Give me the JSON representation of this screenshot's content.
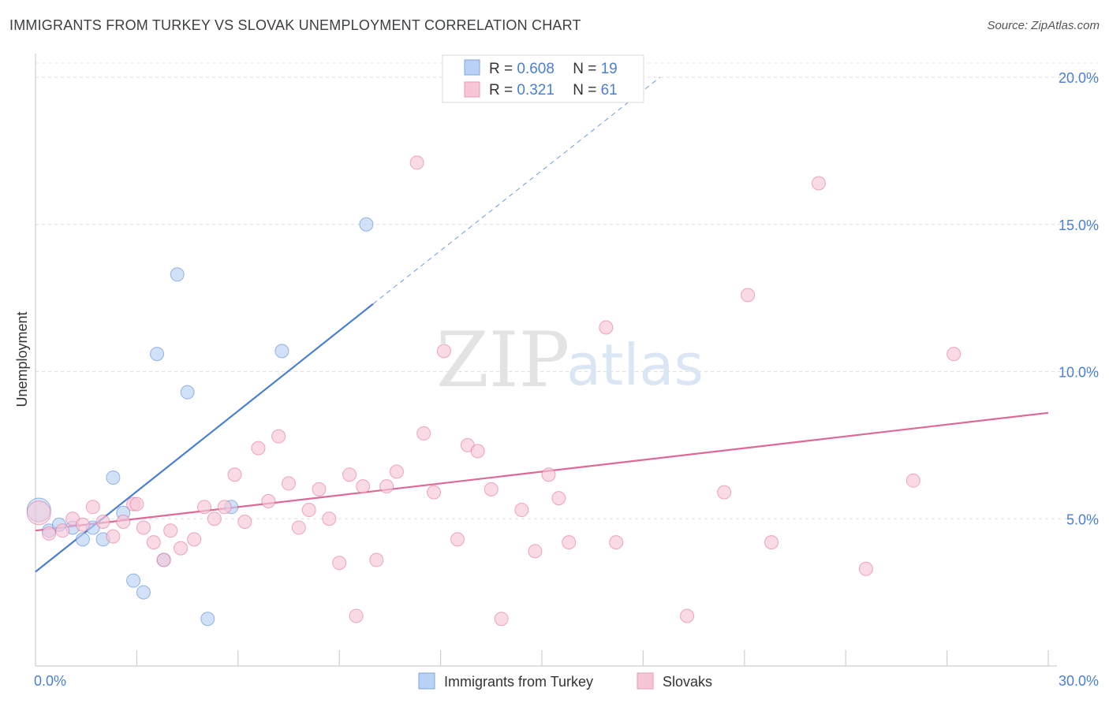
{
  "chart_data": {
    "type": "scatter",
    "title": "IMMIGRANTS FROM TURKEY VS SLOVAK UNEMPLOYMENT CORRELATION CHART",
    "source": "Source: ZipAtlas.com",
    "ylabel": "Unemployment",
    "xlim": [
      0,
      30
    ],
    "ylim": [
      0,
      20
    ],
    "y_ticks": [
      {
        "value": 5,
        "label": "5.0%"
      },
      {
        "value": 10,
        "label": "10.0%"
      },
      {
        "value": 15,
        "label": "15.0%"
      },
      {
        "value": 20,
        "label": "20.0%"
      }
    ],
    "x_ticks": [
      {
        "value": 0,
        "label": "0.0%"
      },
      {
        "value": 30,
        "label": "30.0%"
      }
    ],
    "watermark": {
      "zip": "ZIP",
      "atlas": "atlas"
    },
    "legend": [
      {
        "label": "R = ",
        "r": "0.608",
        "n_label": "N = ",
        "n": "19"
      },
      {
        "label": "R = ",
        "r": " 0.321",
        "n_label": "N = ",
        "n": "61"
      }
    ],
    "series": [
      {
        "name": "Immigrants from Turkey",
        "color": "#4a7fd4",
        "fill": "#b9d1f4",
        "points": [
          [
            0.1,
            5.3
          ],
          [
            0.4,
            4.6
          ],
          [
            0.7,
            4.8
          ],
          [
            1.1,
            4.7
          ],
          [
            1.4,
            4.3
          ],
          [
            1.7,
            4.7
          ],
          [
            2.0,
            4.3
          ],
          [
            2.3,
            6.4
          ],
          [
            2.6,
            5.2
          ],
          [
            2.9,
            2.9
          ],
          [
            3.2,
            2.5
          ],
          [
            3.6,
            10.6
          ],
          [
            3.8,
            3.6
          ],
          [
            4.2,
            13.3
          ],
          [
            4.5,
            9.3
          ],
          [
            5.1,
            1.6
          ],
          [
            5.8,
            5.4
          ],
          [
            7.3,
            10.7
          ],
          [
            9.8,
            15.0
          ]
        ],
        "trend": {
          "x1": 0,
          "y1": 3.2,
          "x2": 10.0,
          "y2": 12.3,
          "dash_to_x": 18.5,
          "dash_to_y": 20.0
        }
      },
      {
        "name": "Slovaks",
        "color": "#e06896",
        "fill": "#f7c6d6",
        "points": [
          [
            0.1,
            5.2
          ],
          [
            0.4,
            4.5
          ],
          [
            0.8,
            4.6
          ],
          [
            1.1,
            5.0
          ],
          [
            1.4,
            4.8
          ],
          [
            1.7,
            5.4
          ],
          [
            2.0,
            4.9
          ],
          [
            2.3,
            4.4
          ],
          [
            2.6,
            4.9
          ],
          [
            2.9,
            5.5
          ],
          [
            3.2,
            4.7
          ],
          [
            3.5,
            4.2
          ],
          [
            3.8,
            3.6
          ],
          [
            4.0,
            4.6
          ],
          [
            4.3,
            4.0
          ],
          [
            4.7,
            4.3
          ],
          [
            5.0,
            5.4
          ],
          [
            5.3,
            5.0
          ],
          [
            5.6,
            5.4
          ],
          [
            5.9,
            6.5
          ],
          [
            6.2,
            4.9
          ],
          [
            6.6,
            7.4
          ],
          [
            6.9,
            5.6
          ],
          [
            7.2,
            7.8
          ],
          [
            7.5,
            6.2
          ],
          [
            7.8,
            4.7
          ],
          [
            8.1,
            5.3
          ],
          [
            8.4,
            6.0
          ],
          [
            8.7,
            5.0
          ],
          [
            9.0,
            3.5
          ],
          [
            9.3,
            6.5
          ],
          [
            9.5,
            1.7
          ],
          [
            9.7,
            6.1
          ],
          [
            10.1,
            3.6
          ],
          [
            10.4,
            6.1
          ],
          [
            10.7,
            6.6
          ],
          [
            11.5,
            7.9
          ],
          [
            11.8,
            5.9
          ],
          [
            12.1,
            10.7
          ],
          [
            12.5,
            4.3
          ],
          [
            12.8,
            7.5
          ],
          [
            13.1,
            7.3
          ],
          [
            13.5,
            6.0
          ],
          [
            13.8,
            1.6
          ],
          [
            14.4,
            5.3
          ],
          [
            14.8,
            3.9
          ],
          [
            15.2,
            6.5
          ],
          [
            15.5,
            5.7
          ],
          [
            15.8,
            4.2
          ],
          [
            16.9,
            11.5
          ],
          [
            17.2,
            4.2
          ],
          [
            19.3,
            1.7
          ],
          [
            20.4,
            5.9
          ],
          [
            21.1,
            12.6
          ],
          [
            21.8,
            4.2
          ],
          [
            23.2,
            16.4
          ],
          [
            24.6,
            3.3
          ],
          [
            26.0,
            6.3
          ],
          [
            27.2,
            10.6
          ],
          [
            11.3,
            17.1
          ],
          [
            3.0,
            5.5
          ]
        ],
        "trend": {
          "x1": 0,
          "y1": 4.6,
          "x2": 30,
          "y2": 8.6
        }
      }
    ],
    "bottom_legend": [
      {
        "label": "Immigrants from Turkey"
      },
      {
        "label": "Slovaks"
      }
    ]
  }
}
